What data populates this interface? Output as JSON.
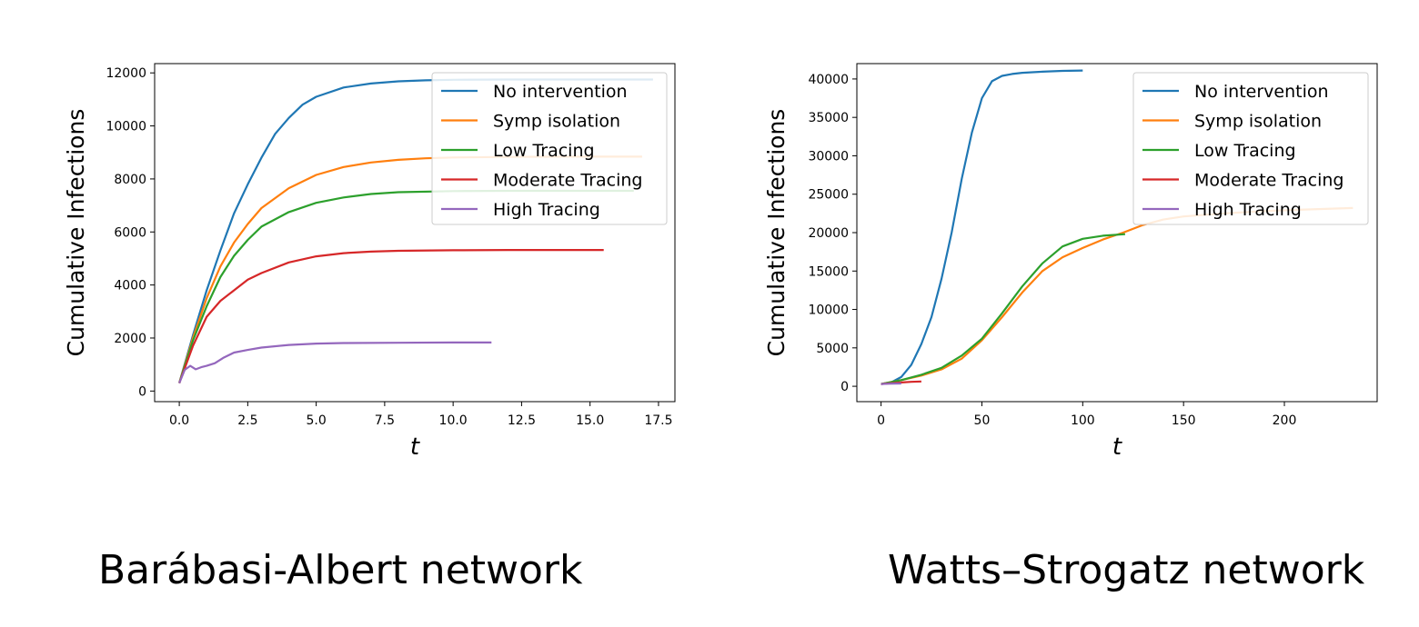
{
  "chart_data": [
    {
      "type": "line",
      "caption": "Barábasi-Albert network",
      "xlabel": "t",
      "ylabel": "Cumulative Infections",
      "xlim": [
        -0.9,
        18.1
      ],
      "ylim": [
        -400,
        12350
      ],
      "xticks": [
        "0.0",
        "2.5",
        "5.0",
        "7.5",
        "10.0",
        "12.5",
        "15.0",
        "17.5"
      ],
      "xtick_values": [
        0,
        2.5,
        5,
        7.5,
        10,
        12.5,
        15,
        17.5
      ],
      "yticks": [
        "0",
        "2000",
        "4000",
        "6000",
        "8000",
        "10000",
        "12000"
      ],
      "ytick_values": [
        0,
        2000,
        4000,
        6000,
        8000,
        10000,
        12000
      ],
      "legend_position": "top-right",
      "series": [
        {
          "name": "No intervention",
          "color": "#1f77b4",
          "x": [
            0,
            0.5,
            1,
            1.5,
            2,
            2.5,
            3,
            3.5,
            4,
            4.5,
            5,
            6,
            7,
            8,
            9,
            10,
            12,
            14,
            17.3
          ],
          "y": [
            300,
            2100,
            3800,
            5300,
            6700,
            7800,
            8800,
            9700,
            10300,
            10800,
            11100,
            11450,
            11600,
            11680,
            11720,
            11740,
            11750,
            11750,
            11750
          ]
        },
        {
          "name": "Symp isolation",
          "color": "#ff7f0e",
          "x": [
            0,
            0.5,
            1,
            1.5,
            2,
            2.5,
            3,
            4,
            5,
            6,
            7,
            8,
            9,
            10,
            12,
            14,
            16.9
          ],
          "y": [
            300,
            2000,
            3500,
            4700,
            5600,
            6300,
            6900,
            7650,
            8150,
            8450,
            8620,
            8720,
            8780,
            8810,
            8830,
            8840,
            8840
          ]
        },
        {
          "name": "Low Tracing",
          "color": "#2ca02c",
          "x": [
            0,
            0.5,
            1,
            1.5,
            2,
            2.5,
            3,
            4,
            5,
            6,
            7,
            8,
            10,
            12,
            14,
            16.6
          ],
          "y": [
            300,
            1900,
            3200,
            4300,
            5100,
            5700,
            6200,
            6750,
            7100,
            7300,
            7430,
            7500,
            7540,
            7550,
            7550,
            7550
          ]
        },
        {
          "name": "Moderate Tracing",
          "color": "#d62728",
          "x": [
            0,
            0.5,
            1,
            1.5,
            2,
            2.5,
            3,
            4,
            5,
            6,
            7,
            8,
            10,
            12,
            15.5
          ],
          "y": [
            300,
            1700,
            2800,
            3400,
            3800,
            4200,
            4450,
            4850,
            5080,
            5200,
            5260,
            5290,
            5310,
            5320,
            5320
          ]
        },
        {
          "name": "High Tracing",
          "color": "#9467bd",
          "x": [
            0,
            0.2,
            0.4,
            0.6,
            0.8,
            1,
            1.3,
            1.6,
            2,
            2.5,
            3,
            4,
            5,
            6,
            8,
            10,
            11.4
          ],
          "y": [
            300,
            800,
            950,
            820,
            900,
            950,
            1050,
            1250,
            1450,
            1550,
            1640,
            1740,
            1790,
            1810,
            1820,
            1830,
            1830
          ]
        }
      ]
    },
    {
      "type": "line",
      "caption": "Watts–Strogatz network",
      "xlabel": "t",
      "ylabel": "Cumulative Infections",
      "xlim": [
        -12,
        246
      ],
      "ylim": [
        -2000,
        42000
      ],
      "xticks": [
        "0",
        "50",
        "100",
        "150",
        "200"
      ],
      "xtick_values": [
        0,
        50,
        100,
        150,
        200
      ],
      "yticks": [
        "0",
        "5000",
        "10000",
        "15000",
        "20000",
        "25000",
        "30000",
        "35000",
        "40000"
      ],
      "ytick_values": [
        0,
        5000,
        10000,
        15000,
        20000,
        25000,
        30000,
        35000,
        40000
      ],
      "legend_position": "top-right",
      "series": [
        {
          "name": "No intervention",
          "color": "#1f77b4",
          "x": [
            0,
            5,
            10,
            15,
            20,
            25,
            30,
            35,
            40,
            45,
            50,
            55,
            60,
            65,
            70,
            80,
            90,
            100
          ],
          "y": [
            300,
            500,
            1200,
            2800,
            5500,
            9000,
            14000,
            20000,
            27000,
            33000,
            37500,
            39700,
            40400,
            40650,
            40800,
            40950,
            41050,
            41100
          ]
        },
        {
          "name": "Symp isolation",
          "color": "#ff7f0e",
          "x": [
            0,
            10,
            20,
            30,
            40,
            50,
            60,
            70,
            80,
            90,
            100,
            110,
            120,
            130,
            140,
            150,
            170,
            190,
            210,
            234
          ],
          "y": [
            300,
            800,
            1400,
            2200,
            3600,
            6000,
            9000,
            12200,
            15000,
            16800,
            18000,
            19100,
            20000,
            21000,
            21700,
            22100,
            22500,
            22800,
            23000,
            23200
          ]
        },
        {
          "name": "Low Tracing",
          "color": "#2ca02c",
          "x": [
            0,
            10,
            20,
            30,
            40,
            50,
            60,
            70,
            80,
            90,
            100,
            110,
            121
          ],
          "y": [
            300,
            800,
            1500,
            2400,
            4000,
            6200,
            9500,
            13000,
            16000,
            18200,
            19200,
            19600,
            19800
          ]
        },
        {
          "name": "Moderate Tracing",
          "color": "#d62728",
          "x": [
            0,
            5,
            10,
            15,
            20
          ],
          "y": [
            300,
            400,
            500,
            580,
            620
          ]
        },
        {
          "name": "High Tracing",
          "color": "#9467bd",
          "x": [
            0,
            3,
            6,
            10
          ],
          "y": [
            300,
            330,
            350,
            360
          ]
        }
      ]
    }
  ]
}
